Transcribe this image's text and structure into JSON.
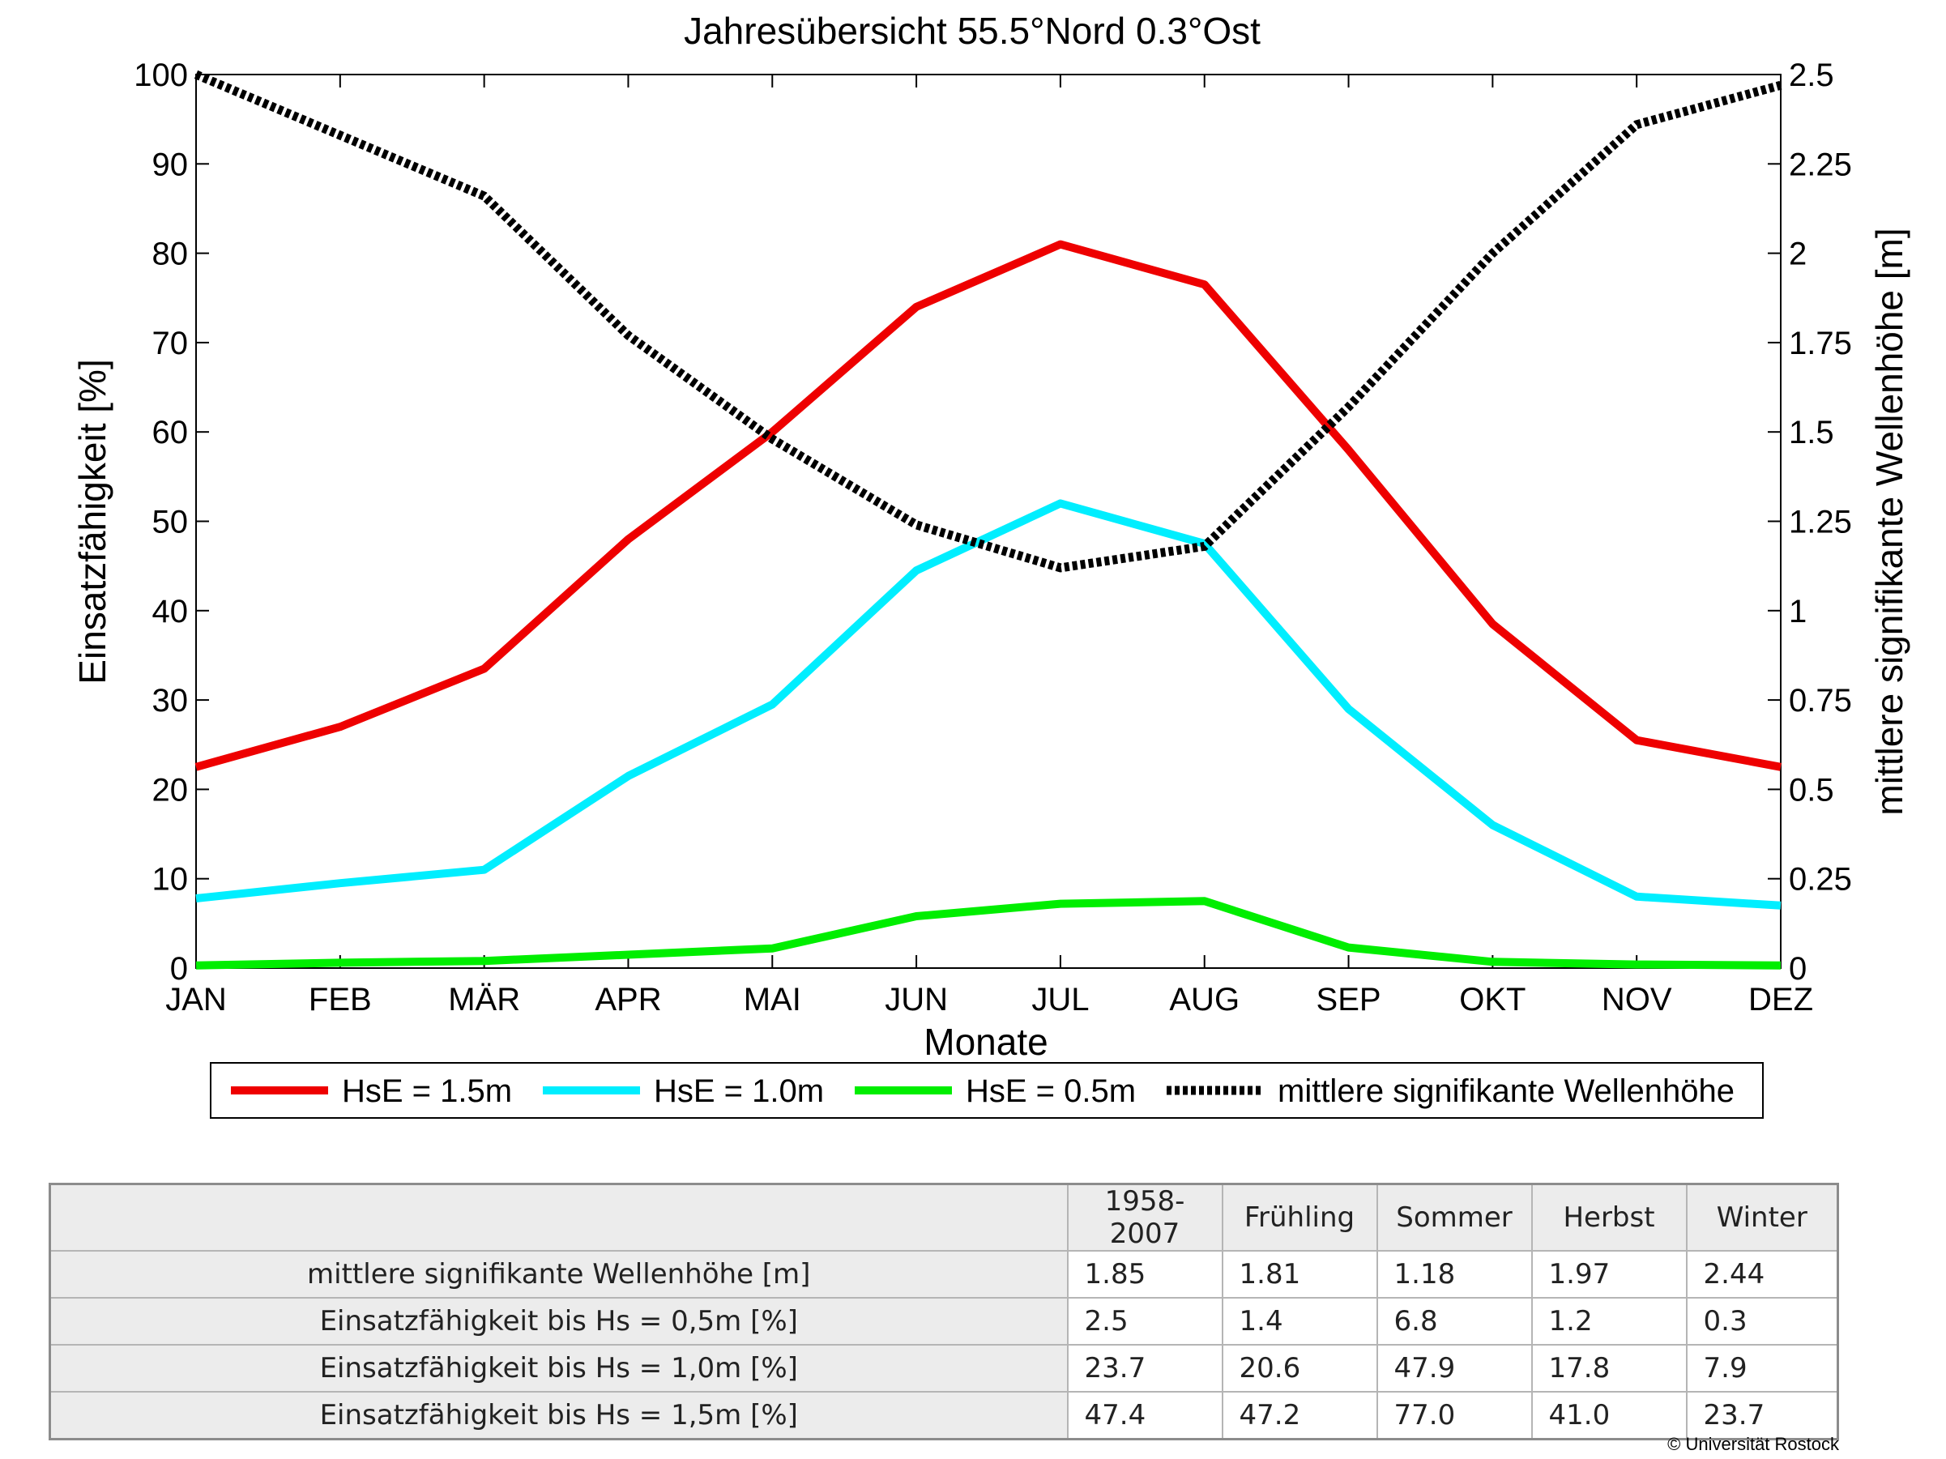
{
  "chart_data": {
    "type": "line",
    "title": "Jahresübersicht  55.5°Nord  0.3°Ost",
    "xlabel": "Monate",
    "ylabel_left": "Einsatzfähigkeit [%]",
    "ylabel_right": "mittlere signifikante Wellenhöhe [m]",
    "categories": [
      "JAN",
      "FEB",
      "MÄR",
      "APR",
      "MAI",
      "JUN",
      "JUL",
      "AUG",
      "SEP",
      "OKT",
      "NOV",
      "DEZ"
    ],
    "ylim_left": [
      0,
      100
    ],
    "ylim_right": [
      0,
      2.5
    ],
    "yticks_left": [
      "0",
      "10",
      "20",
      "30",
      "40",
      "50",
      "60",
      "70",
      "80",
      "90",
      "100"
    ],
    "yticks_right": [
      "0",
      "0.25",
      "0.5",
      "0.75",
      "1",
      "1.25",
      "1.5",
      "1.75",
      "2",
      "2.25",
      "2.5"
    ],
    "legend_position": "bottom",
    "grid": false,
    "series": [
      {
        "name": "HsE = 1.5m",
        "axis": "left",
        "color": "#ee0000",
        "style": "solid",
        "values": [
          22.5,
          27.0,
          33.5,
          48.0,
          60.0,
          74.0,
          81.0,
          76.5,
          58.0,
          38.5,
          25.5,
          22.5
        ]
      },
      {
        "name": "HsE = 1.0m",
        "axis": "left",
        "color": "#00eeff",
        "style": "solid",
        "values": [
          7.8,
          9.5,
          11.0,
          21.5,
          29.5,
          44.5,
          52.0,
          47.5,
          29.0,
          16.0,
          8.0,
          7.0
        ]
      },
      {
        "name": "HsE = 0.5m",
        "axis": "left",
        "color": "#00ee00",
        "style": "solid",
        "values": [
          0.3,
          0.6,
          0.8,
          1.5,
          2.2,
          5.8,
          7.2,
          7.5,
          2.3,
          0.7,
          0.4,
          0.3
        ]
      },
      {
        "name": "mittlere signifikante Wellenhöhe",
        "axis": "right",
        "color": "#000000",
        "style": "dotted",
        "values": [
          2.5,
          2.33,
          2.16,
          1.77,
          1.48,
          1.24,
          1.12,
          1.18,
          1.57,
          2.0,
          2.36,
          2.47
        ]
      }
    ]
  },
  "table": {
    "headers": [
      "1958-2007",
      "Frühling",
      "Sommer",
      "Herbst",
      "Winter"
    ],
    "rows": [
      {
        "label": "mittlere signifikante Wellenhöhe [m]",
        "values": [
          "1.85",
          "1.81",
          "1.18",
          "1.97",
          "2.44"
        ]
      },
      {
        "label": "Einsatzfähigkeit bis Hs = 0,5m [%]",
        "values": [
          "2.5",
          "1.4",
          "6.8",
          "1.2",
          "0.3"
        ]
      },
      {
        "label": "Einsatzfähigkeit bis Hs = 1,0m [%]",
        "values": [
          "23.7",
          "20.6",
          "47.9",
          "17.8",
          "7.9"
        ]
      },
      {
        "label": "Einsatzfähigkeit bis Hs = 1,5m [%]",
        "values": [
          "47.4",
          "47.2",
          "77.0",
          "41.0",
          "23.7"
        ]
      }
    ]
  },
  "copyright": "© Universität Rostock"
}
